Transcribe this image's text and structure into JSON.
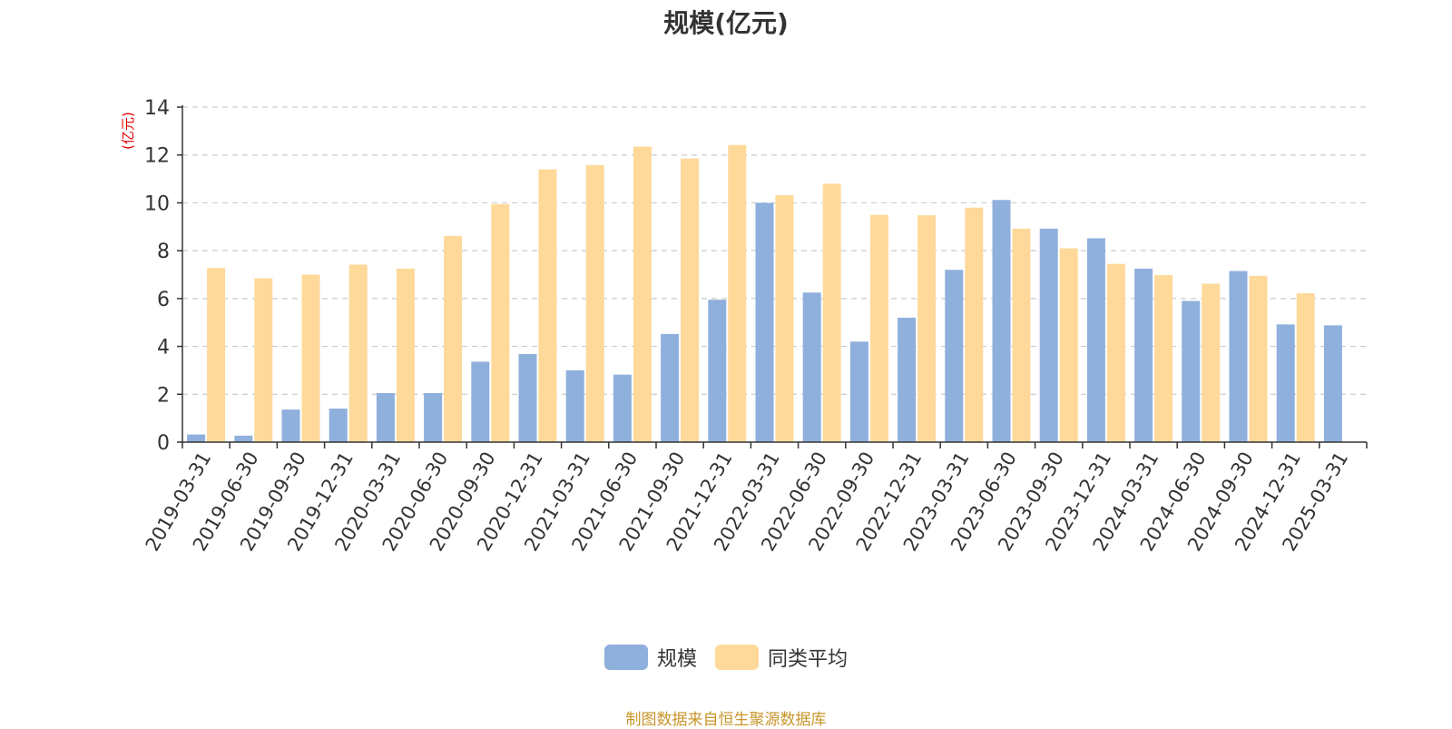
{
  "chart_data": {
    "type": "bar",
    "title": "规模(亿元)",
    "ylabel": "(亿元)",
    "xlabel": "",
    "ylim": [
      0,
      14
    ],
    "yticks": [
      0,
      2,
      4,
      6,
      8,
      10,
      12,
      14
    ],
    "grid": true,
    "legend_position": "bottom-center",
    "categories": [
      "2019-03-31",
      "2019-06-30",
      "2019-09-30",
      "2019-12-31",
      "2020-03-31",
      "2020-06-30",
      "2020-09-30",
      "2020-12-31",
      "2021-03-31",
      "2021-06-30",
      "2021-09-30",
      "2021-12-31",
      "2022-03-31",
      "2022-06-30",
      "2022-09-30",
      "2022-12-31",
      "2023-03-31",
      "2023-06-30",
      "2023-09-30",
      "2023-12-31",
      "2024-03-31",
      "2024-06-30",
      "2024-09-30",
      "2024-12-31",
      "2025-03-31"
    ],
    "series": [
      {
        "name": "规模",
        "color": "#8fb0dc",
        "values": [
          0.32,
          0.27,
          1.36,
          1.4,
          2.05,
          2.05,
          3.36,
          3.68,
          3.0,
          2.82,
          4.52,
          5.95,
          10.0,
          6.25,
          4.2,
          5.2,
          7.2,
          10.12,
          8.92,
          8.52,
          7.25,
          5.9,
          7.15,
          4.92,
          4.88
        ]
      },
      {
        "name": "同类平均",
        "color": "#fed99a",
        "values": [
          7.28,
          6.85,
          7.0,
          7.42,
          7.25,
          8.62,
          9.95,
          11.4,
          11.58,
          12.35,
          11.85,
          12.42,
          10.32,
          10.8,
          9.5,
          9.48,
          9.8,
          8.92,
          8.1,
          7.45,
          6.98,
          6.62,
          6.95,
          6.22,
          null
        ]
      }
    ]
  },
  "source_text": "制图数据来自恒生聚源数据库",
  "colors": {
    "source_text": "#c8962a",
    "ylabel": "#e60000",
    "axis": "#333333",
    "grid": "#cccccc"
  }
}
